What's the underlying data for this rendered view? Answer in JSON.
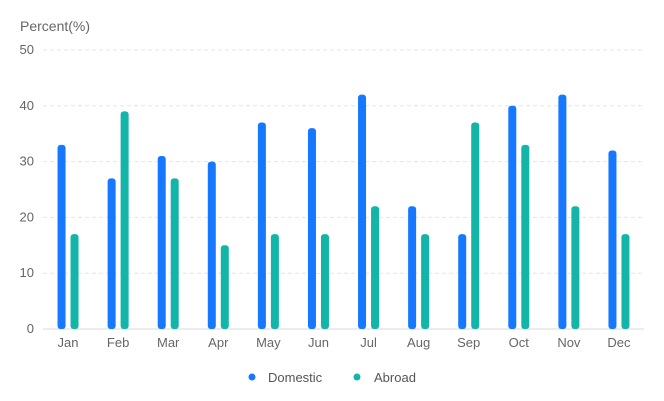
{
  "colors": {
    "domestic": "#1677ff",
    "abroad": "#13b5a8",
    "grid": "#e6e6e6",
    "axis": "#d9d9d9",
    "text": "#666666"
  },
  "chart_data": {
    "type": "bar",
    "title": "",
    "xlabel": "",
    "ylabel": "Percent(%)",
    "ylim": [
      0,
      50
    ],
    "yticks": [
      0,
      10,
      20,
      30,
      40,
      50
    ],
    "grid": true,
    "legend_position": "bottom-center",
    "categories": [
      "Jan",
      "Feb",
      "Mar",
      "Apr",
      "May",
      "Jun",
      "Jul",
      "Aug",
      "Sep",
      "Oct",
      "Nov",
      "Dec"
    ],
    "series": [
      {
        "name": "Domestic",
        "color": "#1677ff",
        "values": [
          33,
          27,
          31,
          30,
          37,
          36,
          42,
          22,
          17,
          40,
          42,
          32
        ]
      },
      {
        "name": "Abroad",
        "color": "#13b5a8",
        "values": [
          17,
          39,
          27,
          15,
          17,
          17,
          22,
          17,
          37,
          33,
          22,
          17
        ]
      }
    ]
  }
}
